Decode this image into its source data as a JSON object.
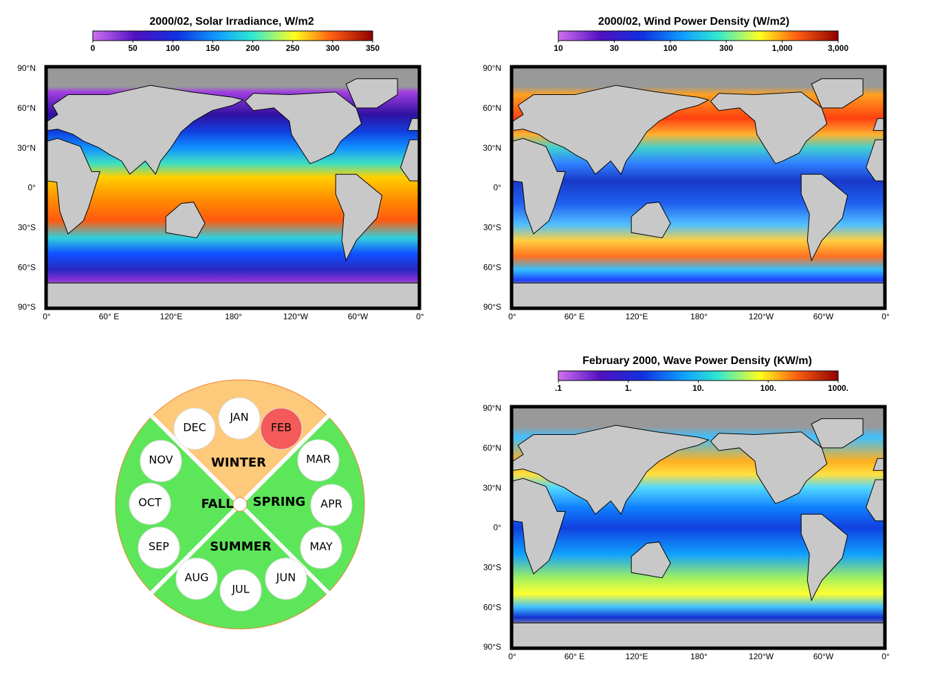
{
  "maps": [
    {
      "title": "2000/02, Solar Irradiance, W/m2",
      "colorbar_ticks": [
        "0",
        "50",
        "100",
        "150",
        "200",
        "250",
        "300",
        "350"
      ],
      "lat_labels": [
        "90°N",
        "60°N",
        "30°N",
        "0°",
        "30°S",
        "60°S",
        "90°S"
      ],
      "lon_labels": [
        "0°",
        "60° E",
        "120°E",
        "180°",
        "120°W",
        "60°W",
        "0°"
      ]
    },
    {
      "title": "2000/02, Wind Power Density (W/m2)",
      "colorbar_ticks": [
        "10",
        "30",
        "100",
        "300",
        "1,000",
        "3,000"
      ],
      "lat_labels": [
        "90°N",
        "60°N",
        "30°N",
        "0°",
        "30°S",
        "60°S",
        "90°S"
      ],
      "lon_labels": [
        "0°",
        "60° E",
        "120°E",
        "180°",
        "120°W",
        "60°W",
        "0°"
      ]
    },
    {
      "title": "February 2000, Wave Power Density (KW/m)",
      "colorbar_ticks": [
        ".1",
        "1.",
        "10.",
        "100.",
        "1000."
      ],
      "lat_labels": [
        "90°N",
        "60°N",
        "30°N",
        "0°",
        "30°S",
        "60°S",
        "90°S"
      ],
      "lon_labels": [
        "0°",
        "60° E",
        "120°E",
        "180°",
        "120°W",
        "60°W",
        "0°"
      ]
    }
  ],
  "season_wheel": {
    "seasons": [
      "WINTER",
      "SPRING",
      "SUMMER",
      "FALL"
    ],
    "months": [
      "DEC",
      "JAN",
      "FEB",
      "MAR",
      "APR",
      "MAY",
      "JUN",
      "JUL",
      "AUG",
      "SEP",
      "OCT",
      "NOV"
    ],
    "selected_month": "FEB"
  }
}
